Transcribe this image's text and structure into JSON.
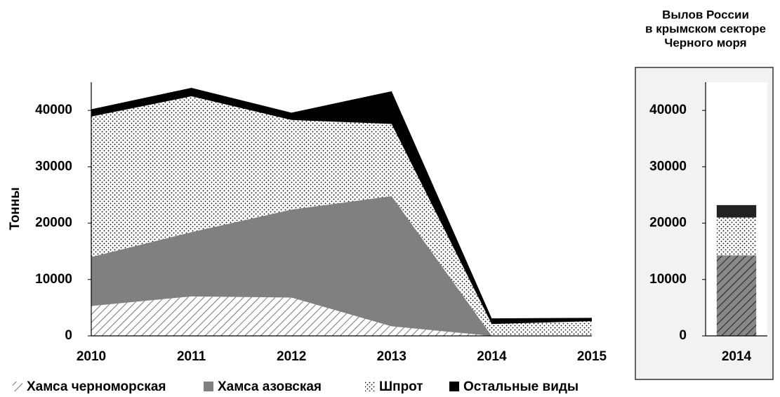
{
  "chart_data": [
    {
      "type": "stacked_area",
      "y_label": "Тонны",
      "categories": [
        "2010",
        "2011",
        "2012",
        "2013",
        "2014",
        "2015"
      ],
      "ylim": [
        0,
        45000
      ],
      "yticks": [
        0,
        10000,
        20000,
        30000,
        40000
      ],
      "series": [
        {
          "name": "Хамса черноморская",
          "color": "hatch",
          "values": [
            5300,
            7000,
            6800,
            1700,
            0,
            0
          ]
        },
        {
          "name": "Хамса азовская",
          "color": "#808080",
          "values": [
            8700,
            11400,
            15600,
            23100,
            0,
            0
          ]
        },
        {
          "name": "Шпрот",
          "color": "dots",
          "values": [
            24900,
            24100,
            15900,
            12800,
            2100,
            2600
          ]
        },
        {
          "name": "Остальные виды",
          "color": "#000000",
          "values": [
            1300,
            1500,
            1300,
            5800,
            1000,
            600
          ]
        }
      ]
    },
    {
      "type": "stacked_bar",
      "title": [
        "Вылов России",
        "в крымском секторе",
        "Черного моря"
      ],
      "categories": [
        "2014"
      ],
      "ylim": [
        0,
        45000
      ],
      "yticks": [
        0,
        10000,
        20000,
        30000,
        40000
      ],
      "series": [
        {
          "color": "hatch-dark",
          "values": [
            14300
          ]
        },
        {
          "color": "dots",
          "values": [
            6700
          ]
        },
        {
          "color": "#222222",
          "values": [
            2200
          ]
        }
      ]
    }
  ]
}
